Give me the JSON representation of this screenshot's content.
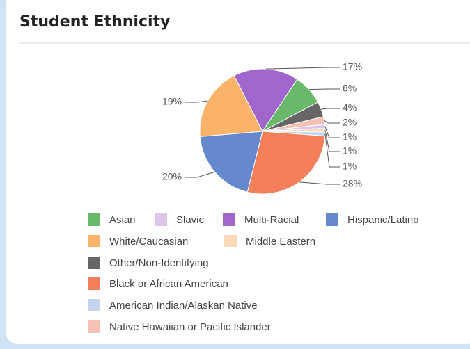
{
  "title": "Student Ethnicity",
  "chart_data": {
    "type": "pie",
    "categories": [
      "Multi-Racial",
      "Asian",
      "Other/Non-Identifying",
      "Native Hawaiian or Pacific Islander",
      "Slavic",
      "Middle Eastern",
      "American Indian/Alaskan Native",
      "Black or African American",
      "Hispanic/Latino",
      "White/Caucasian"
    ],
    "values": [
      17,
      8,
      4,
      2,
      1,
      1,
      1,
      28,
      20,
      19
    ],
    "value_labels": [
      "17%",
      "8%",
      "4%",
      "2%",
      "1%",
      "1%",
      "1%",
      "28%",
      "20%",
      "19%"
    ],
    "colors": [
      "#a066cc",
      "#6ab96a",
      "#666666",
      "#f7c0b4",
      "#dcc6ec",
      "#fcd9b8",
      "#c4d4ee",
      "#f57f5b",
      "#6688cc",
      "#fbb36a"
    ],
    "legend": "bottom"
  }
}
